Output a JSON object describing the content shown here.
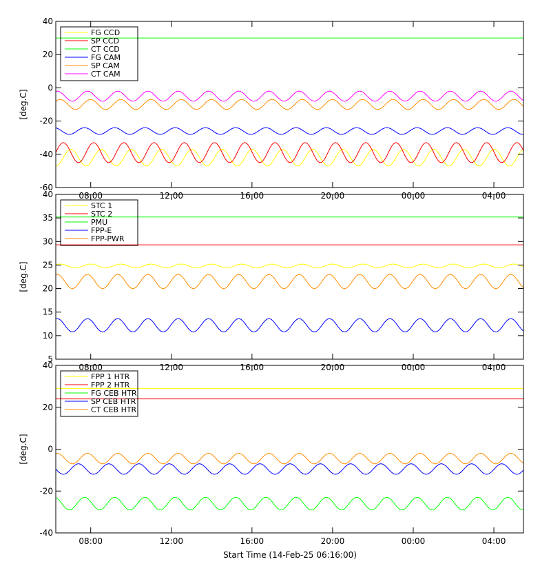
{
  "xlabel": "Start Time (14-Feb-25 06:16:00)",
  "time_ticks": [
    "08:00",
    "12:00",
    "16:00",
    "20:00",
    "00:00",
    "04:00"
  ],
  "chart_data": [
    {
      "type": "line",
      "ylabel": "[deg.C]",
      "ylim": [
        -60,
        40
      ],
      "yticks": [
        -60,
        -40,
        -20,
        0,
        20,
        40
      ],
      "x_range_hours": [
        0,
        23.2
      ],
      "series": [
        {
          "name": "FG CCD",
          "color": "#ffff00",
          "kind": "osc",
          "mean": -42,
          "amp": 5,
          "period_h": 1.5,
          "phase": 0.75
        },
        {
          "name": "SP CCD",
          "color": "#ff0000",
          "kind": "osc",
          "mean": -39,
          "amp": 6,
          "period_h": 1.5,
          "phase": 0
        },
        {
          "name": "CT CCD",
          "color": "#00ff00",
          "kind": "flat",
          "value": 30
        },
        {
          "name": "FG CAM",
          "color": "#0000ff",
          "kind": "osc",
          "mean": -26,
          "amp": 2,
          "period_h": 1.5,
          "phase": 0.3
        },
        {
          "name": "SP CAM",
          "color": "#ff8c00",
          "kind": "osc",
          "mean": -10,
          "amp": 3,
          "period_h": 1.5,
          "phase": 0.1
        },
        {
          "name": "CT CAM",
          "color": "#ff00ff",
          "kind": "osc",
          "mean": -5,
          "amp": 3,
          "period_h": 1.5,
          "phase": 0.2
        }
      ]
    },
    {
      "type": "line",
      "ylabel": "[deg.C]",
      "ylim": [
        5,
        40
      ],
      "yticks": [
        5,
        10,
        15,
        20,
        25,
        30,
        35,
        40
      ],
      "x_range_hours": [
        0,
        23.2
      ],
      "series": [
        {
          "name": "STC 1",
          "color": "#ffff00",
          "kind": "osc",
          "mean": 24.8,
          "amp": 0.4,
          "period_h": 1.5,
          "phase": 0.1
        },
        {
          "name": "STC 2",
          "color": "#ff0000",
          "kind": "flat",
          "value": 29.3
        },
        {
          "name": "PMU",
          "color": "#00ff00",
          "kind": "flat",
          "value": 35.2
        },
        {
          "name": "FPP-E",
          "color": "#0000ff",
          "kind": "osc",
          "mean": 12.2,
          "amp": 1.4,
          "period_h": 1.5,
          "phase": 0.2
        },
        {
          "name": "FPP-PWR",
          "color": "#ff8c00",
          "kind": "osc",
          "mean": 21.5,
          "amp": 1.5,
          "period_h": 1.5,
          "phase": 0.2
        }
      ]
    },
    {
      "type": "line",
      "ylabel": "[deg.C]",
      "ylim": [
        -40,
        40
      ],
      "yticks": [
        -40,
        -20,
        0,
        20,
        40
      ],
      "x_range_hours": [
        0,
        23.2
      ],
      "series": [
        {
          "name": "FPP 1 HTR",
          "color": "#ffff00",
          "kind": "flat",
          "value": 29
        },
        {
          "name": "FPP 2 HTR",
          "color": "#ff0000",
          "kind": "flat",
          "value": 24
        },
        {
          "name": "FG CEB HTR",
          "color": "#00ff00",
          "kind": "osc",
          "mean": -26,
          "amp": 3,
          "period_h": 1.5,
          "phase": 0.3
        },
        {
          "name": "SP CEB HTR",
          "color": "#0000ff",
          "kind": "osc",
          "mean": -9.5,
          "amp": 2.5,
          "period_h": 1.5,
          "phase": 0.5
        },
        {
          "name": "CT CEB HTR",
          "color": "#ff8c00",
          "kind": "osc",
          "mean": -4.5,
          "amp": 2.5,
          "period_h": 1.5,
          "phase": 0.2
        }
      ]
    }
  ]
}
